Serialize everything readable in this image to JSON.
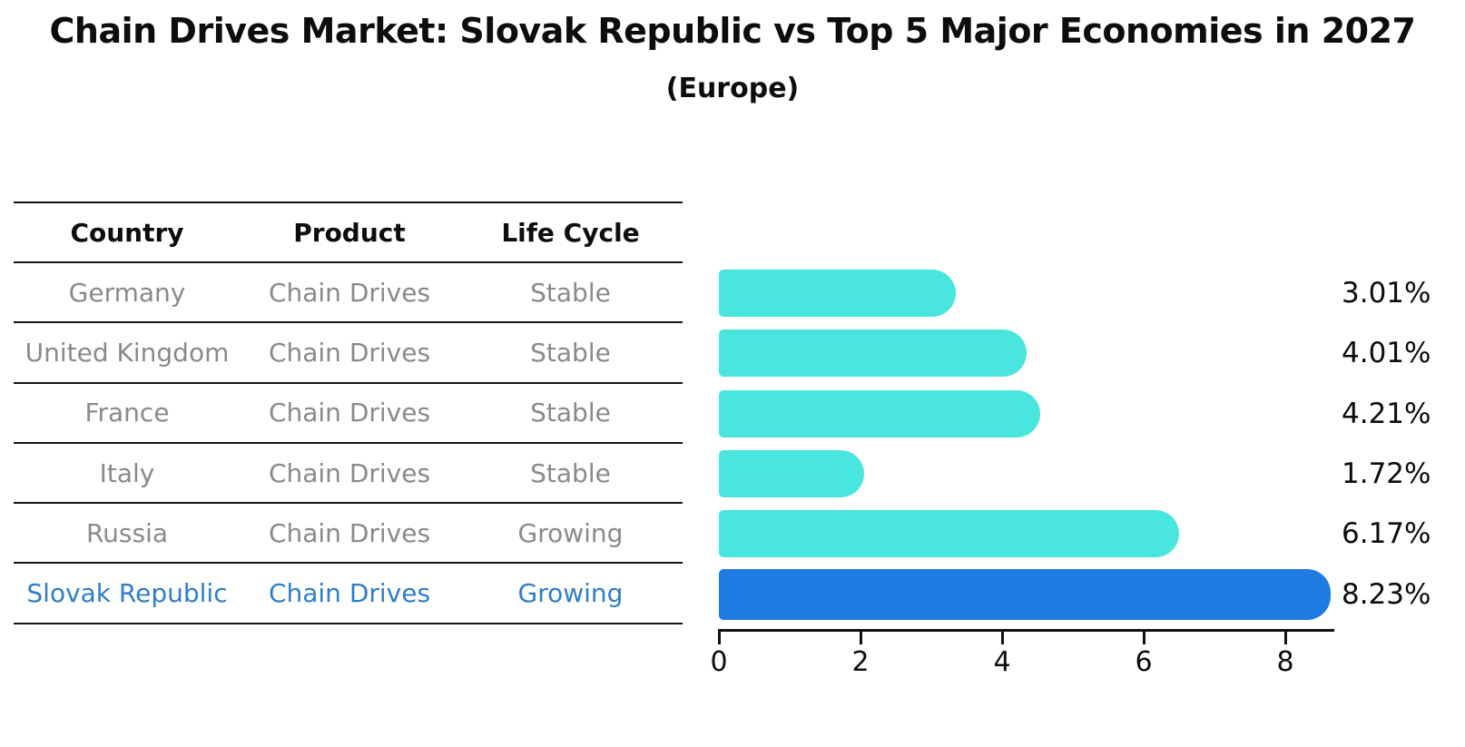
{
  "title": "Chain Drives Market: Slovak Republic vs Top 5 Major Economies in 2027",
  "subtitle": "(Europe)",
  "table": {
    "headers": [
      "Country",
      "Product",
      "Life Cycle"
    ],
    "rows": [
      {
        "country": "Germany",
        "product": "Chain Drives",
        "life_cycle": "Stable",
        "highlighted": false
      },
      {
        "country": "United Kingdom",
        "product": "Chain Drives",
        "life_cycle": "Stable",
        "highlighted": false
      },
      {
        "country": "France",
        "product": "Chain Drives",
        "life_cycle": "Stable",
        "highlighted": false
      },
      {
        "country": "Italy",
        "product": "Chain Drives",
        "life_cycle": "Stable",
        "highlighted": false
      },
      {
        "country": "Russia",
        "product": "Chain Drives",
        "life_cycle": "Growing",
        "highlighted": false
      },
      {
        "country": "Slovak Republic",
        "product": "Chain Drives",
        "life_cycle": "Growing",
        "highlighted": true
      }
    ]
  },
  "chart_data": {
    "type": "bar",
    "orientation": "horizontal",
    "title": "Chain Drives Market: Slovak Republic vs Top 5 Major Economies in 2027",
    "subtitle": "(Europe)",
    "categories": [
      "Germany",
      "United Kingdom",
      "France",
      "Italy",
      "Russia",
      "Slovak Republic"
    ],
    "values": [
      3.01,
      4.01,
      4.21,
      1.72,
      6.17,
      8.23
    ],
    "value_labels": [
      "3.01%",
      "4.01%",
      "4.21%",
      "1.72%",
      "6.17%",
      "8.23%"
    ],
    "x_ticks": [
      0,
      2,
      4,
      6,
      8
    ],
    "xlim": [
      0,
      8.7
    ],
    "grid": false,
    "legend": "none",
    "highlight_index": 5,
    "bar_color": "#48e6de",
    "highlight_bar_color": "#1f7be1",
    "highlight_border_style": "dotted"
  },
  "colors": {
    "bar": "#48e6de",
    "highlight_bar": "#1f7be1",
    "highlight_text": "#2e7ec9",
    "muted_text": "#8a8a8a",
    "ink": "#151515"
  }
}
